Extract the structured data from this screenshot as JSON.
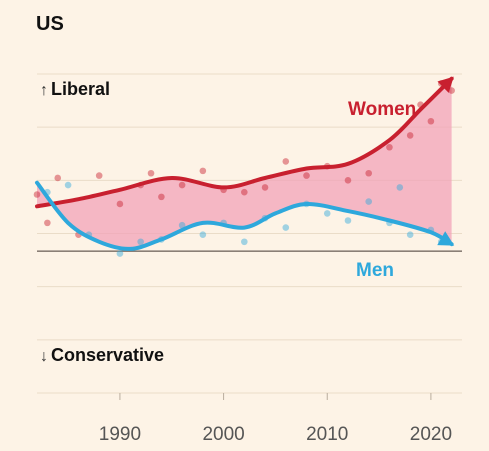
{
  "chart_data": {
    "type": "line",
    "title": "US",
    "top_label": "Liberal",
    "bottom_label": "Conservative",
    "top_arrow": "↑",
    "bottom_arrow": "↓",
    "xlim": [
      1982,
      2023
    ],
    "ylim": [
      -0.6,
      0.75
    ],
    "x_ticks": [
      1990,
      2000,
      2010,
      2020
    ],
    "grid": true,
    "colors": {
      "women": "#c8202f",
      "men": "#2ea8dc",
      "fill": "#f2a3b8",
      "zero_line": "#8a7f76",
      "grid": "#eadcc8"
    },
    "series": [
      {
        "name": "Women",
        "key": "women",
        "x": [
          1982,
          1986,
          1990,
          1995,
          2000,
          2004,
          2008,
          2012,
          2016,
          2019,
          2022
        ],
        "y": [
          0.19,
          0.22,
          0.26,
          0.31,
          0.27,
          0.31,
          0.35,
          0.37,
          0.47,
          0.6,
          0.73
        ],
        "points": [
          {
            "x": 1982,
            "y": 0.24
          },
          {
            "x": 1983,
            "y": 0.12
          },
          {
            "x": 1984,
            "y": 0.31
          },
          {
            "x": 1986,
            "y": 0.07
          },
          {
            "x": 1988,
            "y": 0.32
          },
          {
            "x": 1990,
            "y": 0.2
          },
          {
            "x": 1992,
            "y": 0.28
          },
          {
            "x": 1993,
            "y": 0.33
          },
          {
            "x": 1994,
            "y": 0.23
          },
          {
            "x": 1996,
            "y": 0.28
          },
          {
            "x": 1998,
            "y": 0.34
          },
          {
            "x": 2000,
            "y": 0.26
          },
          {
            "x": 2002,
            "y": 0.25
          },
          {
            "x": 2004,
            "y": 0.27
          },
          {
            "x": 2006,
            "y": 0.38
          },
          {
            "x": 2008,
            "y": 0.32
          },
          {
            "x": 2010,
            "y": 0.36
          },
          {
            "x": 2012,
            "y": 0.3
          },
          {
            "x": 2014,
            "y": 0.33
          },
          {
            "x": 2016,
            "y": 0.44
          },
          {
            "x": 2018,
            "y": 0.49
          },
          {
            "x": 2019,
            "y": 0.62
          },
          {
            "x": 2020,
            "y": 0.55
          },
          {
            "x": 2021,
            "y": 0.71
          },
          {
            "x": 2022,
            "y": 0.68
          }
        ]
      },
      {
        "name": "Men",
        "key": "men",
        "x": [
          1982,
          1985,
          1988,
          1991,
          1994,
          1998,
          2002,
          2005,
          2008,
          2012,
          2016,
          2020,
          2022
        ],
        "y": [
          0.29,
          0.12,
          0.04,
          0.01,
          0.05,
          0.12,
          0.1,
          0.16,
          0.2,
          0.17,
          0.13,
          0.08,
          0.03
        ],
        "points": [
          {
            "x": 1983,
            "y": 0.25
          },
          {
            "x": 1985,
            "y": 0.28
          },
          {
            "x": 1987,
            "y": 0.07
          },
          {
            "x": 1990,
            "y": -0.01
          },
          {
            "x": 1992,
            "y": 0.04
          },
          {
            "x": 1994,
            "y": 0.05
          },
          {
            "x": 1996,
            "y": 0.11
          },
          {
            "x": 1998,
            "y": 0.07
          },
          {
            "x": 2000,
            "y": 0.12
          },
          {
            "x": 2002,
            "y": 0.04
          },
          {
            "x": 2004,
            "y": 0.14
          },
          {
            "x": 2006,
            "y": 0.1
          },
          {
            "x": 2008,
            "y": 0.2
          },
          {
            "x": 2010,
            "y": 0.16
          },
          {
            "x": 2012,
            "y": 0.13
          },
          {
            "x": 2014,
            "y": 0.21
          },
          {
            "x": 2016,
            "y": 0.12
          },
          {
            "x": 2017,
            "y": 0.27
          },
          {
            "x": 2018,
            "y": 0.07
          },
          {
            "x": 2020,
            "y": 0.09
          },
          {
            "x": 2021,
            "y": 0.04
          }
        ]
      }
    ]
  }
}
